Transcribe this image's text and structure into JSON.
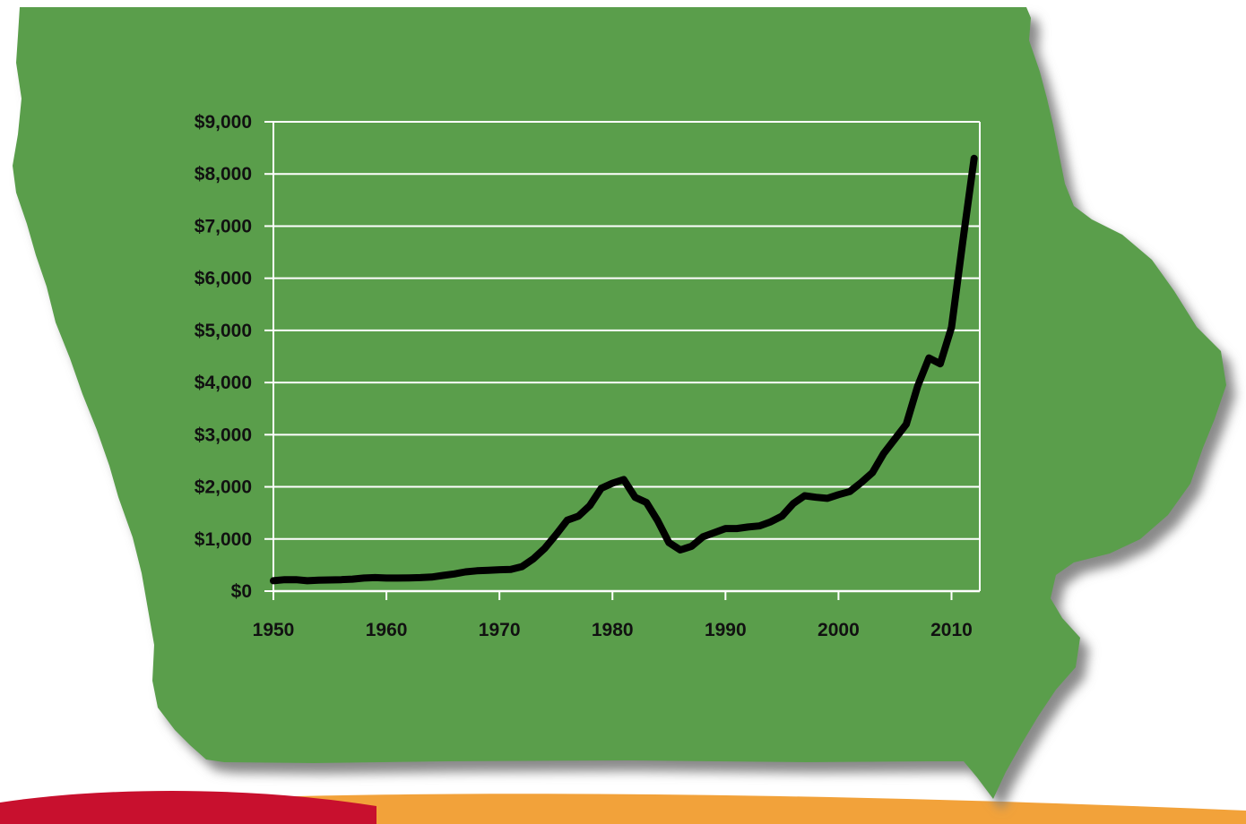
{
  "colors": {
    "map_fill": "#5a9e4c",
    "map_shadow": "#8a8a8a",
    "plot_line": "#000000",
    "grid": "#ffffff",
    "footer_red": "#c8102e",
    "footer_orange": "#f2a23a"
  },
  "background_shape": "Iowa state outline",
  "chart_data": {
    "type": "line",
    "title": "",
    "xlabel": "",
    "ylabel": "",
    "xlim": [
      1950,
      2012.5
    ],
    "ylim": [
      0,
      9000
    ],
    "grid": "horizontal gridlines on",
    "legend": "none",
    "x_ticks": [
      1950,
      1960,
      1970,
      1980,
      1990,
      2000,
      2010
    ],
    "x_tick_labels": [
      "1950",
      "1960",
      "1970",
      "1980",
      "1990",
      "2000",
      "2010"
    ],
    "y_ticks": [
      0,
      1000,
      2000,
      3000,
      4000,
      5000,
      6000,
      7000,
      8000,
      9000
    ],
    "y_tick_labels": [
      "$0",
      "$1,000",
      "$2,000",
      "$3,000",
      "$4,000",
      "$5,000",
      "$6,000",
      "$7,000",
      "$8,000",
      "$9,000"
    ],
    "series": [
      {
        "x": [
          1950,
          1951,
          1952,
          1953,
          1954,
          1955,
          1956,
          1957,
          1958,
          1959,
          1960,
          1961,
          1962,
          1963,
          1964,
          1965,
          1966,
          1967,
          1968,
          1969,
          1970,
          1971,
          1972,
          1973,
          1974,
          1975,
          1976,
          1977,
          1978,
          1979,
          1980,
          1981,
          1982,
          1983,
          1984,
          1985,
          1986,
          1987,
          1988,
          1989,
          1990,
          1991,
          1992,
          1993,
          1994,
          1995,
          1996,
          1997,
          1998,
          1999,
          2000,
          2001,
          2002,
          2003,
          2004,
          2005,
          2006,
          2007,
          2008,
          2009,
          2010,
          2011,
          2012
        ],
        "values": [
          200,
          220,
          220,
          200,
          210,
          215,
          220,
          230,
          250,
          260,
          250,
          250,
          255,
          260,
          270,
          300,
          330,
          370,
          390,
          400,
          410,
          415,
          470,
          620,
          820,
          1080,
          1360,
          1440,
          1640,
          1970,
          2070,
          2140,
          1800,
          1700,
          1350,
          930,
          790,
          860,
          1040,
          1120,
          1200,
          1200,
          1230,
          1250,
          1330,
          1440,
          1680,
          1830,
          1800,
          1780,
          1850,
          1910,
          2080,
          2270,
          2640,
          2920,
          3200,
          3930,
          4470,
          4360,
          5060,
          6710,
          8300
        ]
      }
    ]
  }
}
